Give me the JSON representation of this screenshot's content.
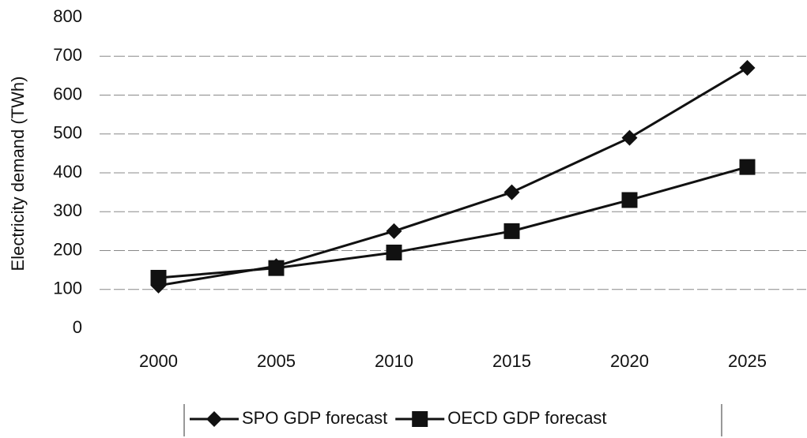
{
  "chart_data": {
    "type": "line",
    "y_label": "Electricity demand (TWh)",
    "categories": [
      "2000",
      "2005",
      "2010",
      "2015",
      "2020",
      "2025"
    ],
    "series": [
      {
        "name": "SPO GDP forecast",
        "color": "#111111",
        "marker": "diamond",
        "values": [
          110,
          160,
          250,
          350,
          490,
          670
        ]
      },
      {
        "name": "OECD GDP forecast",
        "color": "#111111",
        "marker": "square",
        "values": [
          130,
          155,
          195,
          250,
          330,
          415
        ]
      }
    ],
    "ylim": [
      0,
      800
    ],
    "yticks": [
      0,
      100,
      200,
      300,
      400,
      500,
      600,
      700,
      800
    ],
    "grid": true
  }
}
